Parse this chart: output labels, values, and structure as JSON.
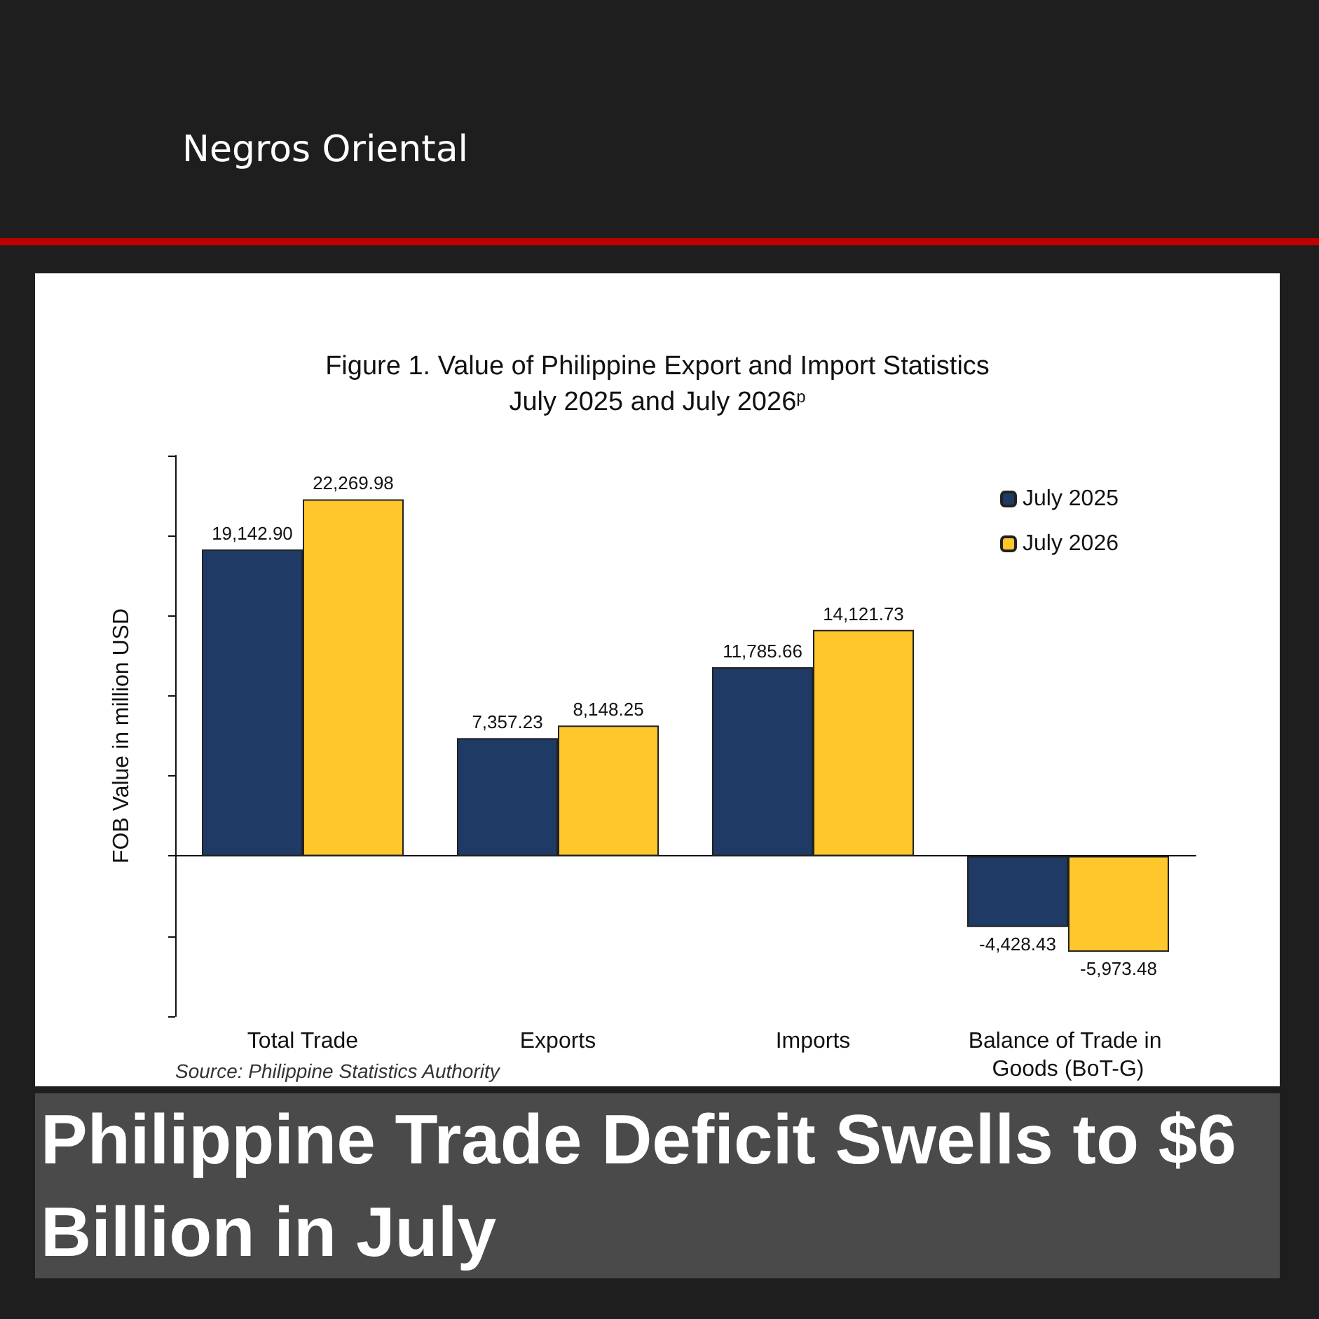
{
  "chart_data": {
    "type": "bar",
    "title": "Figure 1. Value of Philippine Export and Import Statistics",
    "subtitle": "July 2025 and July 2026$^{p}$",
    "ylabel": "FOB Value in million USD",
    "categories": [
      "Total Trade",
      "Exports",
      "Imports",
      "Balance of Trade in Goods (BoT-G)"
    ],
    "series": [
      {
        "name": "July 2025",
        "color": "#1f3a64",
        "values": [
          19142.9,
          7357.23,
          11785.66,
          -4428.43
        ],
        "value_labels": [
          "19,142.90",
          "7,357.23",
          "11,785.66",
          "-4,428.43"
        ]
      },
      {
        "name": "July 2026",
        "color": "#ffc72c",
        "values": [
          22269.98,
          8148.25,
          14121.73,
          -5973.48
        ],
        "value_labels": [
          "22,269.98",
          "8,148.25",
          "14,121.73",
          "-5,973.48"
        ]
      }
    ],
    "ylim": [
      -10000,
      25000
    ],
    "yticks": [
      {
        "value": -10000,
        "label": null
      },
      {
        "value": -5000,
        "label": null
      },
      {
        "value": 0,
        "label": null
      },
      {
        "value": 5000,
        "label": null
      },
      {
        "value": 10000,
        "label": null
      },
      {
        "value": 15000,
        "label": null
      },
      {
        "value": 20000,
        "label": null
      },
      {
        "value": 25000,
        "label": null
      }
    ],
    "tick_labels": "x",
    "grid": false,
    "legend": "top right",
    "annotations": [
      "Negros Oriental",
      "Source: Philippine Statistics Authority",
      "Philippine Trade Deficit Swells to $6 Billion in July"
    ]
  }
}
